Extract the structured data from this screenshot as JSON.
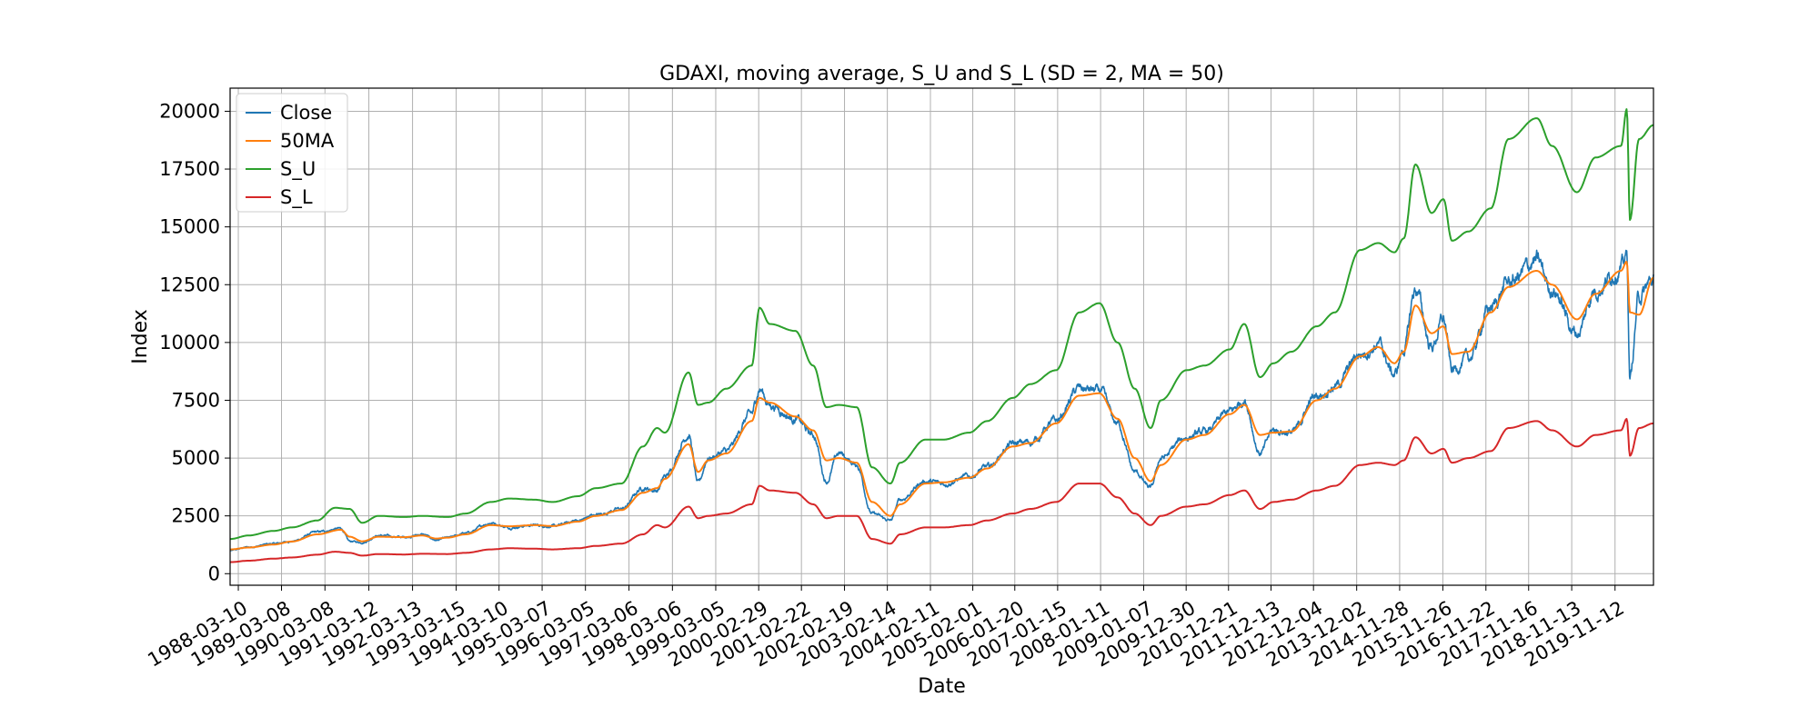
{
  "chart_data": {
    "type": "line",
    "title": "GDAXI, moving average, S_U and S_L (SD = 2, MA = 50)",
    "xlabel": "Date",
    "ylabel": "Index",
    "grid": true,
    "legend_position": "top-left",
    "x_range": [
      "1988-01-01",
      "2020-09-30"
    ],
    "ylim": [
      -500,
      21000
    ],
    "y_ticks": [
      0,
      2500,
      5000,
      7500,
      10000,
      12500,
      15000,
      17500,
      20000
    ],
    "y_tick_labels": [
      "0",
      "2500",
      "5000",
      "7500",
      "10000",
      "12500",
      "15000",
      "17500",
      "20000"
    ],
    "x_ticks": [
      "1988-03-10",
      "1989-03-08",
      "1990-03-08",
      "1991-03-12",
      "1992-03-13",
      "1993-03-15",
      "1994-03-10",
      "1995-03-07",
      "1996-03-05",
      "1997-03-06",
      "1998-03-06",
      "1999-03-05",
      "2000-02-29",
      "2001-02-22",
      "2002-02-19",
      "2003-02-14",
      "2004-02-11",
      "2005-02-01",
      "2006-01-20",
      "2007-01-15",
      "2008-01-11",
      "2009-01-07",
      "2009-12-30",
      "2010-12-21",
      "2011-12-13",
      "2012-12-04",
      "2013-12-02",
      "2014-11-28",
      "2015-11-26",
      "2016-11-22",
      "2017-11-16",
      "2018-11-13",
      "2019-11-12"
    ],
    "series": [
      {
        "name": "Close",
        "color": "#1f77b4",
        "noise": 0.022,
        "x": [
          "1988-01-04",
          "1988-06-01",
          "1989-01-01",
          "1989-06-01",
          "1990-01-01",
          "1990-07-20",
          "1990-10-01",
          "1991-01-15",
          "1991-06-01",
          "1992-01-01",
          "1992-06-01",
          "1992-10-01",
          "1993-01-01",
          "1993-06-01",
          "1994-01-01",
          "1994-06-01",
          "1995-01-01",
          "1995-06-01",
          "1996-01-01",
          "1996-06-01",
          "1997-01-01",
          "1997-07-01",
          "1997-10-28",
          "1998-01-01",
          "1998-07-20",
          "1998-10-08",
          "1999-01-01",
          "1999-06-01",
          "2000-01-01",
          "2000-03-07",
          "2000-06-01",
          "2001-01-01",
          "2001-06-01",
          "2001-09-21",
          "2002-01-01",
          "2002-06-01",
          "2002-10-09",
          "2003-03-12",
          "2003-06-01",
          "2004-01-01",
          "2004-06-01",
          "2005-01-01",
          "2005-06-01",
          "2006-01-01",
          "2006-06-01",
          "2007-01-01",
          "2007-07-16",
          "2008-01-01",
          "2008-06-01",
          "2008-10-24",
          "2009-03-06",
          "2009-06-01",
          "2010-01-01",
          "2010-06-01",
          "2011-01-01",
          "2011-05-02",
          "2011-09-12",
          "2012-01-01",
          "2012-06-01",
          "2013-01-01",
          "2013-06-01",
          "2014-01-01",
          "2014-06-01",
          "2014-10-16",
          "2015-01-01",
          "2015-04-10",
          "2015-08-24",
          "2015-12-01",
          "2016-02-11",
          "2016-06-27",
          "2017-01-01",
          "2017-06-01",
          "2018-01-23",
          "2018-06-01",
          "2018-12-27",
          "2019-06-01",
          "2020-01-01",
          "2020-02-19",
          "2020-03-16",
          "2020-06-01",
          "2020-09-30"
        ],
        "y": [
          1000,
          1150,
          1300,
          1400,
          1800,
          1950,
          1400,
          1350,
          1650,
          1580,
          1700,
          1450,
          1550,
          1750,
          2200,
          2000,
          2100,
          2050,
          2300,
          2550,
          2800,
          3700,
          3600,
          4200,
          6000,
          3900,
          5000,
          5300,
          6900,
          8000,
          7300,
          6700,
          6000,
          4000,
          5200,
          4700,
          2600,
          2300,
          3200,
          4000,
          3900,
          4200,
          4600,
          5600,
          5700,
          6600,
          8000,
          7900,
          6500,
          4400,
          3700,
          5000,
          5900,
          6100,
          7000,
          7500,
          5200,
          6200,
          6100,
          7700,
          8100,
          9500,
          9900,
          8600,
          9700,
          12300,
          9800,
          11000,
          8800,
          9300,
          11500,
          12600,
          13500,
          12300,
          10400,
          12300,
          13200,
          13700,
          8500,
          12000,
          12700
        ]
      },
      {
        "name": "50MA",
        "color": "#ff7f0e",
        "x": [
          "1988-01-04",
          "1988-06-01",
          "1989-01-01",
          "1989-06-01",
          "1990-01-01",
          "1990-07-20",
          "1990-10-01",
          "1991-01-15",
          "1991-06-01",
          "1992-01-01",
          "1992-06-01",
          "1992-10-01",
          "1993-01-01",
          "1993-06-01",
          "1994-01-01",
          "1994-06-01",
          "1995-01-01",
          "1995-06-01",
          "1996-01-01",
          "1996-06-01",
          "1997-01-01",
          "1997-07-01",
          "1997-10-28",
          "1998-01-01",
          "1998-07-20",
          "1998-10-08",
          "1999-01-01",
          "1999-06-01",
          "2000-01-01",
          "2000-03-07",
          "2000-06-01",
          "2001-01-01",
          "2001-06-01",
          "2001-09-21",
          "2002-01-01",
          "2002-06-01",
          "2002-10-09",
          "2003-03-12",
          "2003-06-01",
          "2004-01-01",
          "2004-06-01",
          "2005-01-01",
          "2005-06-01",
          "2006-01-01",
          "2006-06-01",
          "2007-01-01",
          "2007-07-16",
          "2008-01-01",
          "2008-06-01",
          "2008-10-24",
          "2009-03-06",
          "2009-06-01",
          "2010-01-01",
          "2010-06-01",
          "2011-01-01",
          "2011-05-02",
          "2011-09-12",
          "2012-01-01",
          "2012-06-01",
          "2013-01-01",
          "2013-06-01",
          "2014-01-01",
          "2014-06-01",
          "2014-10-16",
          "2015-01-01",
          "2015-04-10",
          "2015-08-24",
          "2015-12-01",
          "2016-02-11",
          "2016-06-27",
          "2017-01-01",
          "2017-06-01",
          "2018-01-23",
          "2018-06-01",
          "2018-12-27",
          "2019-06-01",
          "2020-01-01",
          "2020-02-19",
          "2020-03-16",
          "2020-06-01",
          "2020-09-30"
        ],
        "y": [
          1050,
          1130,
          1260,
          1390,
          1700,
          1900,
          1600,
          1400,
          1600,
          1580,
          1650,
          1520,
          1560,
          1700,
          2100,
          2050,
          2100,
          2060,
          2250,
          2500,
          2750,
          3500,
          3700,
          4100,
          5600,
          4400,
          4900,
          5200,
          6600,
          7600,
          7400,
          6800,
          6200,
          4900,
          5000,
          4800,
          3100,
          2500,
          3000,
          3900,
          3950,
          4150,
          4550,
          5500,
          5650,
          6500,
          7700,
          7800,
          6700,
          5000,
          4000,
          4700,
          5800,
          6000,
          6900,
          7300,
          6000,
          6100,
          6150,
          7500,
          8000,
          9400,
          9800,
          9100,
          9600,
          11600,
          10400,
          10700,
          9500,
          9600,
          11300,
          12400,
          13100,
          12500,
          11000,
          12100,
          13100,
          13500,
          11300,
          11200,
          12800
        ]
      },
      {
        "name": "S_U",
        "color": "#2ca02c",
        "x": [
          "1988-01-04",
          "1988-06-01",
          "1989-01-01",
          "1989-06-01",
          "1990-01-01",
          "1990-06-01",
          "1990-10-01",
          "1991-01-15",
          "1991-06-01",
          "1992-01-01",
          "1992-06-01",
          "1993-01-01",
          "1993-06-01",
          "1994-01-01",
          "1994-06-01",
          "1995-01-01",
          "1995-06-01",
          "1996-01-01",
          "1996-06-01",
          "1997-01-01",
          "1997-07-01",
          "1997-10-28",
          "1998-01-01",
          "1998-07-20",
          "1998-10-08",
          "1999-01-01",
          "1999-06-01",
          "2000-01-01",
          "2000-03-07",
          "2000-06-01",
          "2001-01-01",
          "2001-06-01",
          "2001-09-21",
          "2002-01-01",
          "2002-06-01",
          "2002-10-09",
          "2003-03-12",
          "2003-06-01",
          "2004-01-01",
          "2004-06-01",
          "2005-01-01",
          "2005-06-01",
          "2006-01-01",
          "2006-06-01",
          "2007-01-01",
          "2007-07-16",
          "2008-01-01",
          "2008-06-01",
          "2008-10-24",
          "2009-03-06",
          "2009-06-01",
          "2010-01-01",
          "2010-06-01",
          "2011-01-01",
          "2011-05-02",
          "2011-09-12",
          "2012-01-01",
          "2012-06-01",
          "2013-01-01",
          "2013-06-01",
          "2014-01-01",
          "2014-06-01",
          "2014-10-16",
          "2015-01-01",
          "2015-04-10",
          "2015-08-24",
          "2015-12-01",
          "2016-02-11",
          "2016-06-27",
          "2017-01-01",
          "2017-06-01",
          "2018-01-23",
          "2018-06-01",
          "2018-12-27",
          "2019-06-01",
          "2020-01-01",
          "2020-02-19",
          "2020-03-16",
          "2020-06-01",
          "2020-09-30"
        ],
        "y": [
          1500,
          1650,
          1850,
          2000,
          2300,
          2850,
          2800,
          2200,
          2500,
          2450,
          2500,
          2450,
          2600,
          3100,
          3250,
          3200,
          3100,
          3350,
          3700,
          3900,
          5500,
          6300,
          6100,
          8700,
          7300,
          7400,
          8000,
          9000,
          11500,
          10800,
          10500,
          9000,
          7200,
          7300,
          7200,
          4600,
          3900,
          4800,
          5800,
          5800,
          6100,
          6600,
          7600,
          8200,
          8800,
          11300,
          11700,
          10000,
          8000,
          6300,
          7500,
          8800,
          9000,
          9700,
          10800,
          8500,
          9100,
          9600,
          10700,
          11300,
          14000,
          14300,
          13900,
          14500,
          17700,
          15600,
          16200,
          14400,
          14800,
          15800,
          18800,
          19700,
          18500,
          16500,
          18000,
          18500,
          20100,
          15300,
          18800,
          19400
        ]
      },
      {
        "name": "S_L",
        "color": "#d62728",
        "x": [
          "1988-01-04",
          "1988-06-01",
          "1989-01-01",
          "1989-06-01",
          "1990-01-01",
          "1990-06-01",
          "1990-10-01",
          "1991-01-15",
          "1991-06-01",
          "1992-01-01",
          "1992-06-01",
          "1993-01-01",
          "1993-06-01",
          "1994-01-01",
          "1994-06-01",
          "1995-01-01",
          "1995-06-01",
          "1996-01-01",
          "1996-06-01",
          "1997-01-01",
          "1997-07-01",
          "1997-10-28",
          "1998-01-01",
          "1998-07-20",
          "1998-10-08",
          "1999-01-01",
          "1999-06-01",
          "2000-01-01",
          "2000-03-07",
          "2000-06-01",
          "2001-01-01",
          "2001-06-01",
          "2001-09-21",
          "2002-01-01",
          "2002-06-01",
          "2002-10-09",
          "2003-03-12",
          "2003-06-01",
          "2004-01-01",
          "2004-06-01",
          "2005-01-01",
          "2005-06-01",
          "2006-01-01",
          "2006-06-01",
          "2007-01-01",
          "2007-07-16",
          "2008-01-01",
          "2008-06-01",
          "2008-10-24",
          "2009-03-06",
          "2009-06-01",
          "2010-01-01",
          "2010-06-01",
          "2011-01-01",
          "2011-05-02",
          "2011-09-12",
          "2012-01-01",
          "2012-06-01",
          "2013-01-01",
          "2013-06-01",
          "2014-01-01",
          "2014-06-01",
          "2014-10-16",
          "2015-01-01",
          "2015-04-10",
          "2015-08-24",
          "2015-12-01",
          "2016-02-11",
          "2016-06-27",
          "2017-01-01",
          "2017-06-01",
          "2018-01-23",
          "2018-06-01",
          "2018-12-27",
          "2019-06-01",
          "2020-01-01",
          "2020-02-19",
          "2020-03-16",
          "2020-06-01",
          "2020-09-30"
        ],
        "y": [
          500,
          560,
          650,
          700,
          820,
          950,
          900,
          780,
          850,
          830,
          860,
          850,
          900,
          1050,
          1100,
          1080,
          1050,
          1100,
          1200,
          1300,
          1700,
          2100,
          2000,
          2900,
          2400,
          2500,
          2600,
          3000,
          3800,
          3600,
          3500,
          3000,
          2400,
          2500,
          2500,
          1500,
          1300,
          1700,
          2000,
          2000,
          2100,
          2300,
          2600,
          2800,
          3100,
          3900,
          3900,
          3300,
          2600,
          2100,
          2500,
          2900,
          3000,
          3400,
          3600,
          2800,
          3100,
          3200,
          3600,
          3800,
          4700,
          4800,
          4700,
          4900,
          5900,
          5200,
          5400,
          4800,
          5000,
          5300,
          6300,
          6600,
          6200,
          5500,
          6000,
          6200,
          6700,
          5100,
          6300,
          6500
        ]
      }
    ]
  }
}
